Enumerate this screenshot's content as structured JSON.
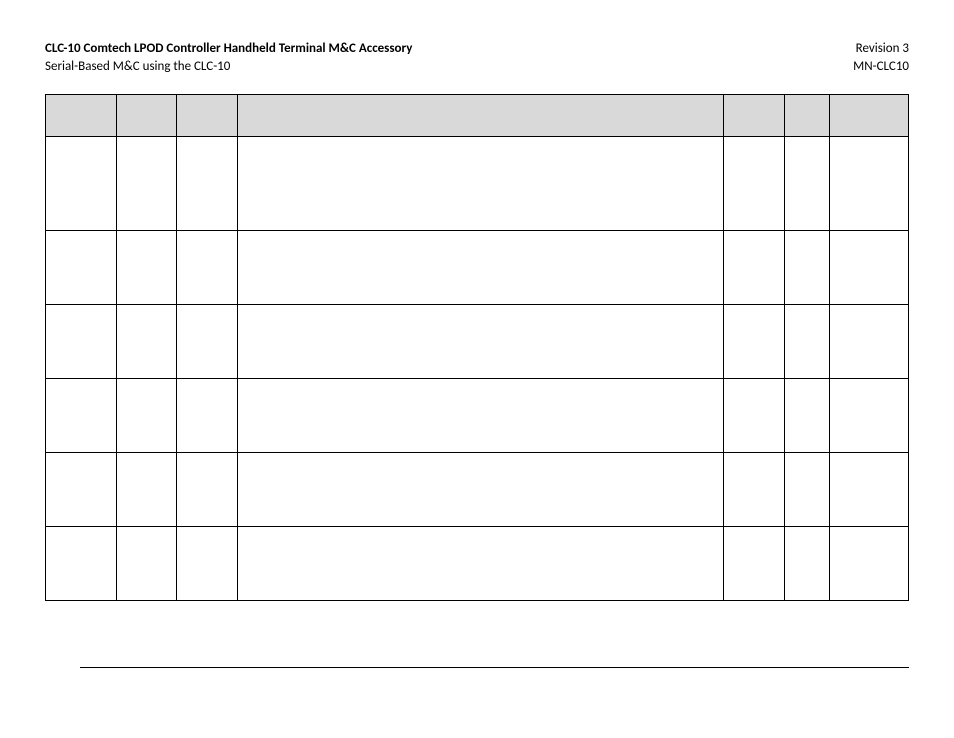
{
  "header": {
    "left_line1": "CLC-10 Comtech LPOD Controller Handheld Terminal M&C Accessory",
    "left_line2": "Serial-Based M&C using the CLC-10",
    "right_line1": "Revision 3",
    "right_line2": "MN-CLC10"
  },
  "table": {
    "header_bg_color": "#d9d9d9",
    "border_color": "#000000",
    "columns": [
      {
        "width_pct": 8.2
      },
      {
        "width_pct": 7.0
      },
      {
        "width_pct": 7.0
      },
      {
        "width_pct": 56.4
      },
      {
        "width_pct": 7.0
      },
      {
        "width_pct": 5.2
      },
      {
        "width_pct": 9.2
      }
    ],
    "rows": [
      {
        "type": "header",
        "cells": [
          "",
          "",
          "",
          "",
          "",
          "",
          ""
        ]
      },
      {
        "type": "tall",
        "cells": [
          "",
          "",
          "",
          "",
          "",
          "",
          ""
        ]
      },
      {
        "type": "med",
        "cells": [
          "",
          "",
          "",
          "",
          "",
          "",
          ""
        ]
      },
      {
        "type": "med",
        "cells": [
          "",
          "",
          "",
          "",
          "",
          "",
          ""
        ]
      },
      {
        "type": "med",
        "cells": [
          "",
          "",
          "",
          "",
          "",
          "",
          ""
        ]
      },
      {
        "type": "med",
        "cells": [
          "",
          "",
          "",
          "",
          "",
          "",
          ""
        ]
      },
      {
        "type": "med",
        "cells": [
          "",
          "",
          "",
          "",
          "",
          "",
          ""
        ]
      }
    ]
  },
  "colors": {
    "page_bg": "#ffffff",
    "text": "#000000"
  }
}
